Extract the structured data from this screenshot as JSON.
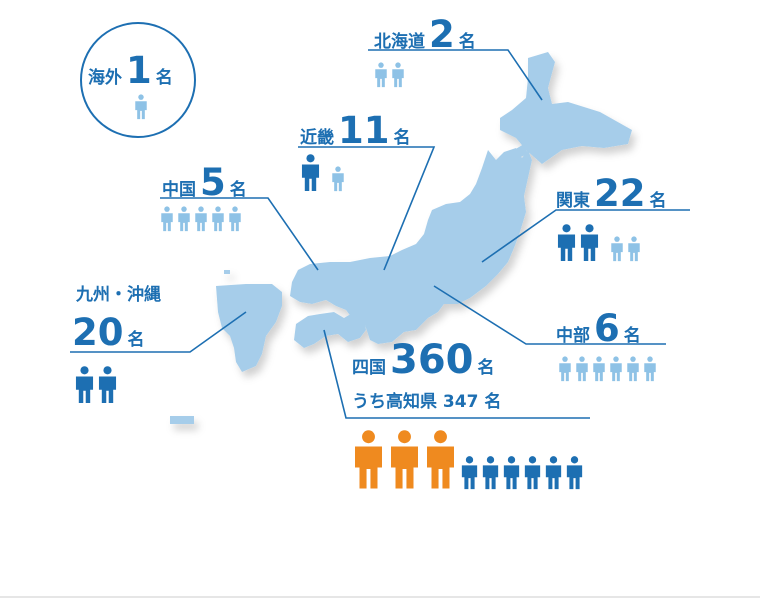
{
  "colors": {
    "land": "#a6cdea",
    "line": "#1d6fb2",
    "text": "#1d6fb2",
    "figure_dark": "#1d6fb2",
    "figure_light": "#8ec2e6",
    "figure_orange": "#ef8a1f"
  },
  "icon_names": {
    "person": "person-icon"
  },
  "regions": [
    {
      "id": "overseas",
      "name": "海外",
      "count": "1",
      "unit": "名",
      "figures": {
        "large": 0,
        "small": 1,
        "orange": 0
      }
    },
    {
      "id": "hokkaido",
      "name": "北海道",
      "count": "2",
      "unit": "名",
      "figures": {
        "large": 0,
        "small": 2,
        "orange": 0
      }
    },
    {
      "id": "kinki",
      "name": "近畿",
      "count": "11",
      "unit": "名",
      "figures": {
        "large": 1,
        "small": 1,
        "orange": 0
      }
    },
    {
      "id": "chugoku",
      "name": "中国",
      "count": "5",
      "unit": "名",
      "figures": {
        "large": 0,
        "small": 5,
        "orange": 0
      }
    },
    {
      "id": "kanto",
      "name": "関東",
      "count": "22",
      "unit": "名",
      "figures": {
        "large": 2,
        "small": 2,
        "orange": 0
      }
    },
    {
      "id": "kyushu",
      "name": "九州・沖縄",
      "count": "20",
      "unit": "名",
      "figures": {
        "large": 2,
        "small": 0,
        "orange": 0
      }
    },
    {
      "id": "chubu",
      "name": "中部",
      "count": "6",
      "unit": "名",
      "figures": {
        "large": 0,
        "small": 6,
        "orange": 0
      }
    },
    {
      "id": "shikoku",
      "name": "四国",
      "count": "360",
      "unit": "名",
      "sub_label": "うち高知県 347 名",
      "figures": {
        "large": 0,
        "small": 6,
        "orange": 3
      }
    }
  ]
}
